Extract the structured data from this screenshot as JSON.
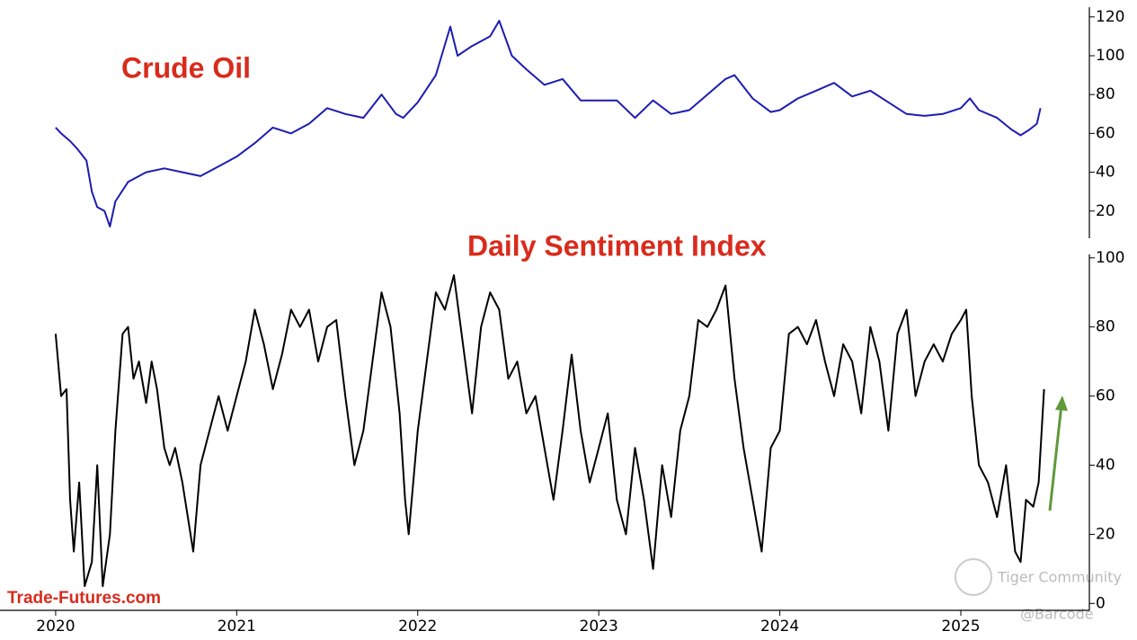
{
  "chart_data": [
    {
      "type": "line",
      "title": "Crude Oil",
      "x": [
        2020.0,
        2020.03,
        2020.08,
        2020.12,
        2020.17,
        2020.2,
        2020.23,
        2020.27,
        2020.3,
        2020.33,
        2020.4,
        2020.5,
        2020.6,
        2020.7,
        2020.8,
        2020.9,
        2021.0,
        2021.1,
        2021.2,
        2021.3,
        2021.4,
        2021.5,
        2021.6,
        2021.7,
        2021.8,
        2021.88,
        2021.92,
        2022.0,
        2022.1,
        2022.18,
        2022.22,
        2022.3,
        2022.4,
        2022.45,
        2022.52,
        2022.6,
        2022.7,
        2022.8,
        2022.9,
        2023.0,
        2023.1,
        2023.2,
        2023.3,
        2023.4,
        2023.5,
        2023.6,
        2023.7,
        2023.75,
        2023.85,
        2023.95,
        2024.0,
        2024.1,
        2024.2,
        2024.3,
        2024.4,
        2024.5,
        2024.6,
        2024.7,
        2024.8,
        2024.9,
        2025.0,
        2025.05,
        2025.1,
        2025.2,
        2025.28,
        2025.33,
        2025.38,
        2025.42,
        2025.44
      ],
      "series": [
        {
          "color": "#1c1cb4",
          "values": [
            63,
            60,
            56,
            52,
            46,
            30,
            22,
            20,
            12,
            25,
            35,
            40,
            42,
            40,
            38,
            43,
            48,
            55,
            63,
            60,
            65,
            73,
            70,
            68,
            80,
            70,
            68,
            76,
            90,
            115,
            100,
            105,
            110,
            118,
            100,
            93,
            85,
            88,
            77,
            77,
            77,
            68,
            77,
            70,
            72,
            80,
            88,
            90,
            78,
            71,
            72,
            78,
            82,
            86,
            79,
            82,
            76,
            70,
            69,
            70,
            73,
            78,
            72,
            68,
            62,
            59,
            62,
            65,
            73
          ]
        }
      ],
      "xlim": [
        2019.7,
        2025.71
      ],
      "ylim": [
        6,
        125
      ],
      "yticks": [
        20,
        40,
        60,
        80,
        100,
        120
      ]
    },
    {
      "type": "line",
      "title": "Daily Sentiment Index",
      "source": "Trade-Futures.com",
      "x": [
        2020.0,
        2020.03,
        2020.06,
        2020.08,
        2020.1,
        2020.13,
        2020.16,
        2020.2,
        2020.23,
        2020.26,
        2020.3,
        2020.33,
        2020.37,
        2020.4,
        2020.43,
        2020.46,
        2020.5,
        2020.53,
        2020.56,
        2020.6,
        2020.63,
        2020.66,
        2020.7,
        2020.76,
        2020.8,
        2020.85,
        2020.9,
        2020.95,
        2021.0,
        2021.05,
        2021.1,
        2021.15,
        2021.2,
        2021.25,
        2021.3,
        2021.35,
        2021.4,
        2021.45,
        2021.5,
        2021.55,
        2021.6,
        2021.65,
        2021.7,
        2021.75,
        2021.8,
        2021.85,
        2021.9,
        2021.93,
        2021.95,
        2022.0,
        2022.05,
        2022.1,
        2022.15,
        2022.2,
        2022.25,
        2022.3,
        2022.35,
        2022.4,
        2022.45,
        2022.5,
        2022.55,
        2022.6,
        2022.65,
        2022.7,
        2022.75,
        2022.8,
        2022.85,
        2022.9,
        2022.95,
        2023.0,
        2023.05,
        2023.1,
        2023.15,
        2023.2,
        2023.25,
        2023.3,
        2023.35,
        2023.4,
        2023.45,
        2023.5,
        2023.55,
        2023.6,
        2023.65,
        2023.7,
        2023.75,
        2023.8,
        2023.85,
        2023.9,
        2023.95,
        2024.0,
        2024.05,
        2024.1,
        2024.15,
        2024.2,
        2024.25,
        2024.3,
        2024.35,
        2024.4,
        2024.45,
        2024.5,
        2024.55,
        2024.6,
        2024.65,
        2024.7,
        2024.75,
        2024.8,
        2024.85,
        2024.9,
        2024.95,
        2025.0,
        2025.03,
        2025.06,
        2025.1,
        2025.15,
        2025.2,
        2025.25,
        2025.3,
        2025.33,
        2025.36,
        2025.4,
        2025.43,
        2025.46
      ],
      "series": [
        {
          "color": "#000000",
          "values": [
            78,
            60,
            62,
            30,
            15,
            35,
            5,
            12,
            40,
            5,
            20,
            50,
            78,
            80,
            65,
            70,
            58,
            70,
            62,
            45,
            40,
            45,
            35,
            15,
            40,
            50,
            60,
            50,
            60,
            70,
            85,
            75,
            62,
            72,
            85,
            80,
            85,
            70,
            80,
            82,
            60,
            40,
            50,
            70,
            90,
            80,
            55,
            30,
            20,
            50,
            70,
            90,
            85,
            95,
            75,
            55,
            80,
            90,
            85,
            65,
            70,
            55,
            60,
            45,
            30,
            50,
            72,
            50,
            35,
            45,
            55,
            30,
            20,
            45,
            30,
            10,
            40,
            25,
            50,
            60,
            82,
            80,
            85,
            92,
            65,
            45,
            30,
            15,
            45,
            50,
            78,
            80,
            75,
            82,
            70,
            60,
            75,
            70,
            55,
            80,
            70,
            50,
            78,
            85,
            60,
            70,
            75,
            70,
            78,
            82,
            85,
            60,
            40,
            35,
            25,
            40,
            15,
            12,
            30,
            28,
            35,
            62
          ]
        }
      ],
      "xlim": [
        2019.7,
        2025.71
      ],
      "ylim": [
        -2,
        101
      ],
      "yticks": [
        0,
        20,
        40,
        60,
        80,
        100
      ],
      "xticks": [
        2020,
        2021,
        2022,
        2023,
        2024,
        2025
      ]
    }
  ],
  "watermark": [
    "Tiger Community",
    "@Barcode"
  ]
}
